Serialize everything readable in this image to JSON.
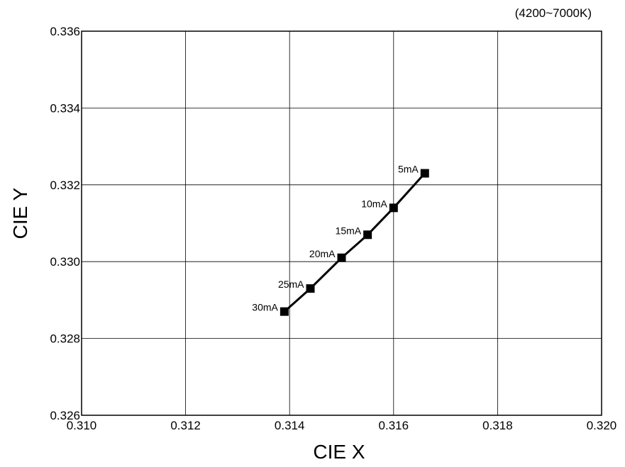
{
  "chart_data": {
    "type": "line",
    "title": "",
    "subtitle": "(4200~7000K)",
    "xlabel": "CIE X",
    "ylabel": "CIE Y",
    "xlim": [
      0.31,
      0.32
    ],
    "ylim": [
      0.326,
      0.336
    ],
    "xticks": [
      "0.310",
      "0.312",
      "0.314",
      "0.316",
      "0.318",
      "0.320"
    ],
    "yticks": [
      "0.326",
      "0.328",
      "0.330",
      "0.332",
      "0.334",
      "0.336"
    ],
    "grid": true,
    "colors": {
      "line": "#000000",
      "grid": "#000000",
      "marker": "#000000"
    },
    "series": [
      {
        "points": [
          {
            "label": "5mA",
            "x": 0.3166,
            "y": 0.3323
          },
          {
            "label": "10mA",
            "x": 0.316,
            "y": 0.3314
          },
          {
            "label": "15mA",
            "x": 0.3155,
            "y": 0.3307
          },
          {
            "label": "20mA",
            "x": 0.315,
            "y": 0.3301
          },
          {
            "label": "25mA",
            "x": 0.3144,
            "y": 0.3293
          },
          {
            "label": "30mA",
            "x": 0.3139,
            "y": 0.3287
          }
        ]
      }
    ]
  }
}
